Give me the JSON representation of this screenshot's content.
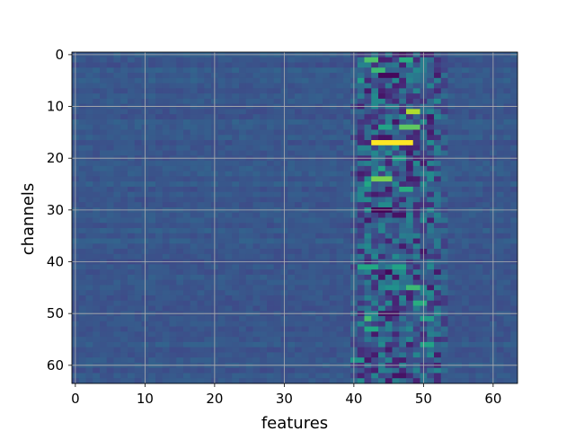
{
  "chart_data": {
    "type": "heatmap",
    "title": "",
    "xlabel": "features",
    "ylabel": "channels",
    "colormap": "viridis",
    "n_columns": 64,
    "n_rows": 64,
    "xlim": [
      -0.5,
      63.5
    ],
    "ylim": [
      63.5,
      -0.5
    ],
    "xticks": [
      0,
      10,
      20,
      30,
      40,
      50,
      60
    ],
    "yticks": [
      0,
      10,
      20,
      30,
      40,
      50,
      60
    ],
    "grid": true,
    "value_range": [
      0,
      1
    ],
    "background_level": 0.27,
    "active_band": {
      "features": [
        40,
        53
      ],
      "description": "high-variance band of alternating dark and bright values across all channels"
    },
    "highlights": [
      {
        "channel": 1,
        "features": [
          42,
          43
        ],
        "value": 0.72
      },
      {
        "channel": 1,
        "features": [
          47,
          48
        ],
        "value": 0.62
      },
      {
        "channel": 3,
        "features": [
          43,
          44
        ],
        "value": 0.68
      },
      {
        "channel": 5,
        "features": [
          41,
          41
        ],
        "value": 0.55
      },
      {
        "channel": 11,
        "features": [
          48,
          49
        ],
        "value": 0.88
      },
      {
        "channel": 14,
        "features": [
          44,
          45
        ],
        "value": 0.58
      },
      {
        "channel": 14,
        "features": [
          47,
          49
        ],
        "value": 0.75
      },
      {
        "channel": 17,
        "features": [
          43,
          48
        ],
        "value": 1.0
      },
      {
        "channel": 20,
        "features": [
          46,
          47
        ],
        "value": 0.55
      },
      {
        "channel": 22,
        "features": [
          44,
          44
        ],
        "value": 0.58
      },
      {
        "channel": 24,
        "features": [
          43,
          45
        ],
        "value": 0.8
      },
      {
        "channel": 25,
        "features": [
          42,
          42
        ],
        "value": 0.6
      },
      {
        "channel": 26,
        "features": [
          47,
          48
        ],
        "value": 0.62
      },
      {
        "channel": 41,
        "features": [
          41,
          43
        ],
        "value": 0.6
      },
      {
        "channel": 41,
        "features": [
          46,
          47
        ],
        "value": 0.58
      },
      {
        "channel": 45,
        "features": [
          45,
          46
        ],
        "value": 0.5
      },
      {
        "channel": 45,
        "features": [
          48,
          49
        ],
        "value": 0.68
      },
      {
        "channel": 48,
        "features": [
          49,
          50
        ],
        "value": 0.62
      },
      {
        "channel": 51,
        "features": [
          42,
          42
        ],
        "value": 0.7
      },
      {
        "channel": 51,
        "features": [
          50,
          51
        ],
        "value": 0.55
      },
      {
        "channel": 53,
        "features": [
          42,
          43
        ],
        "value": 0.6
      },
      {
        "channel": 56,
        "features": [
          50,
          51
        ],
        "value": 0.58
      },
      {
        "channel": 59,
        "features": [
          40,
          41
        ],
        "value": 0.52
      }
    ],
    "dark_spots": [
      {
        "channel": 4,
        "features": [
          44,
          46
        ],
        "value": 0.02
      },
      {
        "channel": 16,
        "features": [
          44,
          45
        ],
        "value": 0.05
      },
      {
        "channel": 30,
        "features": [
          43,
          45
        ],
        "value": 0.0
      },
      {
        "channel": 31,
        "features": [
          46,
          47
        ],
        "value": 0.05
      },
      {
        "channel": 42,
        "features": [
          45,
          45
        ],
        "value": 0.02
      },
      {
        "channel": 50,
        "features": [
          44,
          46
        ],
        "value": 0.05
      },
      {
        "channel": 62,
        "features": [
          46,
          47
        ],
        "value": 0.05
      }
    ]
  }
}
